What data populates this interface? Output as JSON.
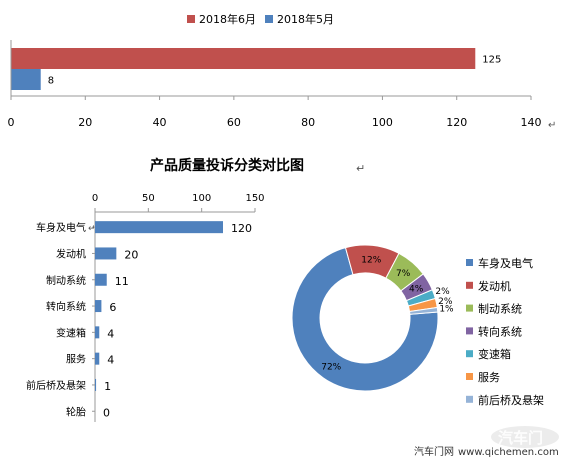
{
  "chart_data": [
    {
      "type": "bar",
      "orientation": "horizontal",
      "legend": {
        "position": "top"
      },
      "series": [
        {
          "name": "2018年6月",
          "color": "#c0504d",
          "values": [
            125
          ]
        },
        {
          "name": "2018年5月",
          "color": "#4f81bd",
          "values": [
            8
          ]
        }
      ],
      "xlim": [
        0,
        140
      ],
      "xticks": [
        0,
        20,
        40,
        60,
        80,
        100,
        120,
        140
      ],
      "data_labels": [
        "125",
        "8"
      ],
      "grid": false
    },
    {
      "type": "bar",
      "orientation": "horizontal",
      "title": "产品质量投诉分类对比图",
      "title_mark": "↵",
      "categories": [
        "车身及电气",
        "发动机",
        "制动系统",
        "转向系统",
        "变速箱",
        "服务",
        "前后桥及悬架",
        "轮胎"
      ],
      "values": [
        120,
        20,
        11,
        6,
        4,
        4,
        1,
        0
      ],
      "data_labels": [
        "120",
        "20",
        "11",
        "6",
        "4",
        "4",
        "1",
        "0"
      ],
      "color": "#4f81bd",
      "xlim": [
        0,
        150
      ],
      "xticks": [
        0,
        50,
        100,
        150
      ],
      "category_mark": "↵",
      "grid": false
    },
    {
      "type": "pie",
      "style": "donut",
      "legend": {
        "position": "right"
      },
      "labels": [
        "车身及电气",
        "发动机",
        "制动系统",
        "转向系统",
        "变速箱",
        "服务",
        "前后桥及悬架"
      ],
      "values": [
        72,
        12,
        7,
        4,
        2,
        2,
        1
      ],
      "data_labels": [
        "72%",
        "12%",
        "7%",
        "4%",
        "2%",
        "2%",
        "1%"
      ],
      "colors": [
        "#4f81bd",
        "#c0504d",
        "#9bbb59",
        "#8064a2",
        "#4bacc6",
        "#f79646",
        "#95b3d7"
      ]
    }
  ],
  "watermark": {
    "site_name": "汽车门网",
    "url": "www.qichemen.com",
    "logo_text": "汽车门"
  }
}
